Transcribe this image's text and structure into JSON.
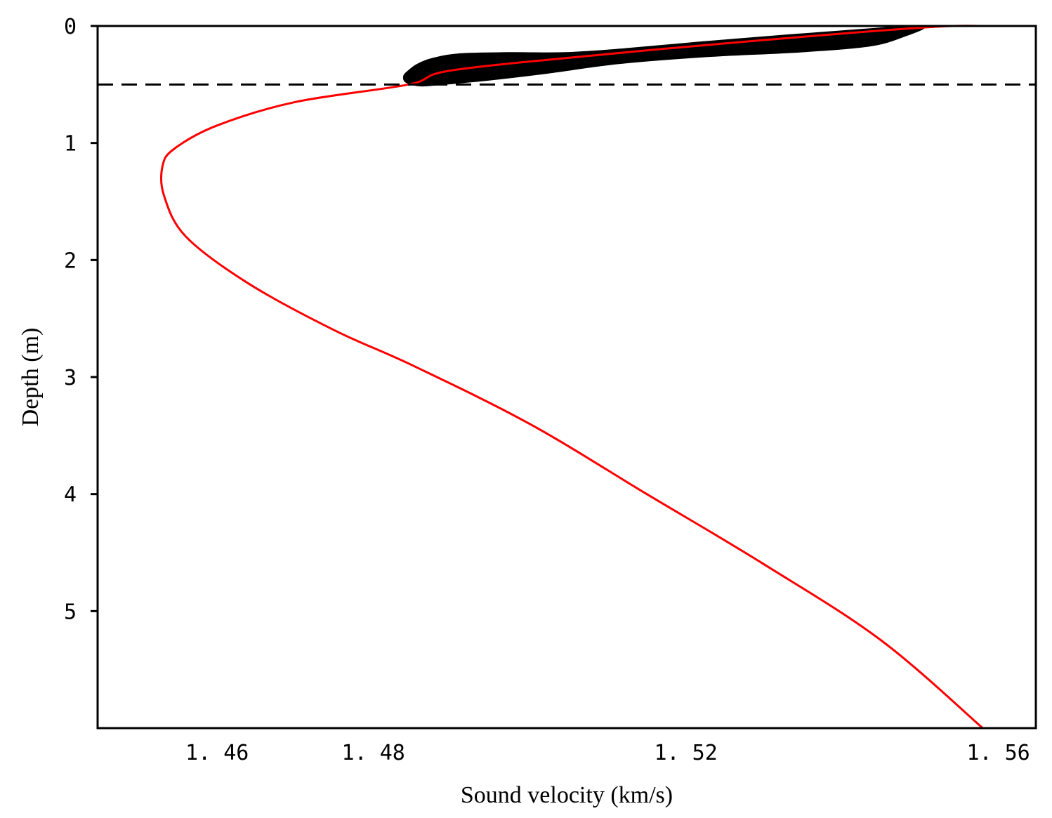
{
  "chart_data": {
    "type": "line",
    "title": "",
    "xlabel": "Sound velocity (km/s)",
    "ylabel": "Depth (m)",
    "xlim": [
      1.4447,
      1.5648
    ],
    "ylim": [
      0,
      6
    ],
    "y_inverted": true,
    "grid": false,
    "legend": "none",
    "x_ticks": [
      {
        "value": 1.46,
        "label": "1. 46"
      },
      {
        "value": 1.48,
        "label": "1. 48"
      },
      {
        "value": 1.52,
        "label": "1. 52"
      },
      {
        "value": 1.56,
        "label": "1. 56"
      }
    ],
    "y_ticks": [
      {
        "value": 0,
        "label": "0"
      },
      {
        "value": 1,
        "label": "1"
      },
      {
        "value": 2,
        "label": "2"
      },
      {
        "value": 3,
        "label": "3"
      },
      {
        "value": 4,
        "label": "4"
      },
      {
        "value": 5,
        "label": "5"
      }
    ],
    "series": [
      {
        "style": "band",
        "color": "#000000",
        "upper": [
          {
            "x": 1.4839,
            "y": 0.43
          },
          {
            "x": 1.4844,
            "y": 0.39
          },
          {
            "x": 1.4856,
            "y": 0.33
          },
          {
            "x": 1.4875,
            "y": 0.28
          },
          {
            "x": 1.491,
            "y": 0.24
          },
          {
            "x": 1.4973,
            "y": 0.23
          },
          {
            "x": 1.5045,
            "y": 0.23
          },
          {
            "x": 1.5116,
            "y": 0.2
          },
          {
            "x": 1.5217,
            "y": 0.14
          },
          {
            "x": 1.5328,
            "y": 0.08
          },
          {
            "x": 1.5427,
            "y": 0.03
          },
          {
            "x": 1.5504,
            "y": 0
          }
        ],
        "lower": [
          {
            "x": 1.5504,
            "y": 0
          },
          {
            "x": 1.5478,
            "y": 0.09
          },
          {
            "x": 1.5435,
            "y": 0.17
          },
          {
            "x": 1.5346,
            "y": 0.22
          },
          {
            "x": 1.5228,
            "y": 0.26
          },
          {
            "x": 1.5114,
            "y": 0.32
          },
          {
            "x": 1.5024,
            "y": 0.4
          },
          {
            "x": 1.4948,
            "y": 0.46
          },
          {
            "x": 1.4884,
            "y": 0.5
          },
          {
            "x": 1.486,
            "y": 0.51
          },
          {
            "x": 1.4842,
            "y": 0.48
          },
          {
            "x": 1.4839,
            "y": 0.43
          }
        ]
      },
      {
        "style": "line",
        "color": "#ff0000",
        "points": [
          {
            "x": 1.558,
            "y": 0
          },
          {
            "x": 1.551,
            "y": 0.01
          },
          {
            "x": 1.53,
            "y": 0.12
          },
          {
            "x": 1.51,
            "y": 0.24
          },
          {
            "x": 1.49,
            "y": 0.38
          },
          {
            "x": 1.4845,
            "y": 0.5
          },
          {
            "x": 1.47,
            "y": 0.65
          },
          {
            "x": 1.46,
            "y": 0.85
          },
          {
            "x": 1.4545,
            "y": 1.05
          },
          {
            "x": 1.453,
            "y": 1.2
          },
          {
            "x": 1.4532,
            "y": 1.45
          },
          {
            "x": 1.456,
            "y": 1.8
          },
          {
            "x": 1.464,
            "y": 2.2
          },
          {
            "x": 1.475,
            "y": 2.6
          },
          {
            "x": 1.485,
            "y": 2.9
          },
          {
            "x": 1.5,
            "y": 3.4
          },
          {
            "x": 1.515,
            "y": 4
          },
          {
            "x": 1.53,
            "y": 4.6
          },
          {
            "x": 1.545,
            "y": 5.25
          },
          {
            "x": 1.558,
            "y": 6
          }
        ]
      },
      {
        "style": "dashed-line",
        "color": "#000000",
        "points": [
          {
            "x": 1.4447,
            "y": 0.5
          },
          {
            "x": 1.5648,
            "y": 0.5
          }
        ]
      }
    ]
  }
}
